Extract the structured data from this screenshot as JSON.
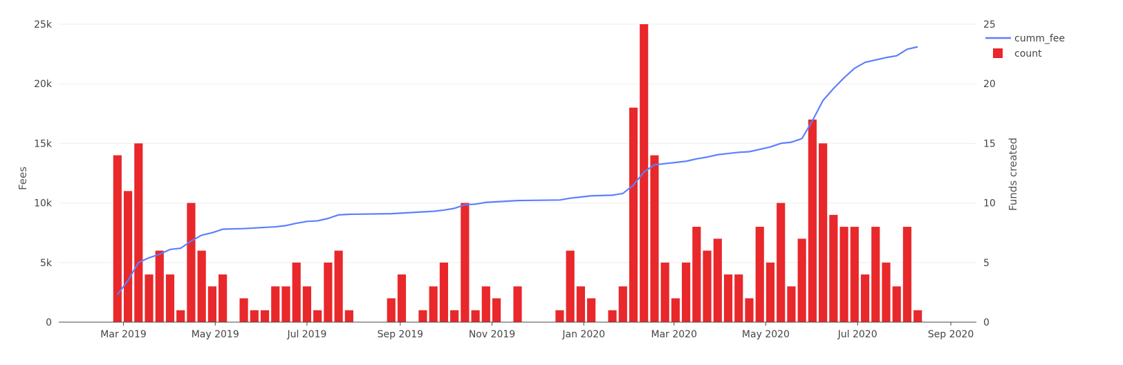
{
  "chart_data": {
    "type": "bar",
    "left_axis": {
      "label": "Fees",
      "ylim": [
        0,
        25000
      ],
      "ticks": [
        0,
        5000,
        10000,
        15000,
        20000,
        25000
      ],
      "tick_labels": [
        "0",
        "5k",
        "10k",
        "15k",
        "20k",
        "25k"
      ]
    },
    "right_axis": {
      "label": "Funds created",
      "ylim": [
        0,
        25
      ],
      "ticks": [
        0,
        5,
        10,
        15,
        20,
        25
      ],
      "tick_labels": [
        "0",
        "5",
        "10",
        "15",
        "20",
        "25"
      ]
    },
    "x_axis": {
      "ticks": [
        "2019-03-01",
        "2019-05-01",
        "2019-07-01",
        "2019-09-01",
        "2019-11-01",
        "2020-01-01",
        "2020-03-01",
        "2020-05-01",
        "2020-07-01",
        "2020-09-01"
      ],
      "tick_labels": [
        "Mar 2019",
        "May 2019",
        "Jul 2019",
        "Sep 2019",
        "Nov 2019",
        "Jan 2020",
        "Mar 2020",
        "May 2020",
        "Jul 2020",
        "Sep 2020"
      ],
      "range": [
        "2019-01-17",
        "2020-09-18"
      ]
    },
    "grid": true,
    "legend_position": "top-right",
    "legend": [
      {
        "name": "cumm_fee",
        "type": "line",
        "color": "#5B7FFF"
      },
      {
        "name": "count",
        "type": "bar",
        "color": "#E8282B"
      }
    ],
    "series": [
      {
        "name": "count",
        "type": "bar",
        "axis": "right",
        "color": "#E8282B",
        "points": [
          [
            "2019-02-25",
            14
          ],
          [
            "2019-03-04",
            11
          ],
          [
            "2019-03-11",
            15
          ],
          [
            "2019-03-18",
            4
          ],
          [
            "2019-03-25",
            6
          ],
          [
            "2019-04-01",
            4
          ],
          [
            "2019-04-08",
            1
          ],
          [
            "2019-04-15",
            10
          ],
          [
            "2019-04-22",
            6
          ],
          [
            "2019-04-29",
            3
          ],
          [
            "2019-05-06",
            4
          ],
          [
            "2019-05-20",
            2
          ],
          [
            "2019-05-27",
            1
          ],
          [
            "2019-06-03",
            1
          ],
          [
            "2019-06-10",
            3
          ],
          [
            "2019-06-17",
            3
          ],
          [
            "2019-06-24",
            5
          ],
          [
            "2019-07-01",
            3
          ],
          [
            "2019-07-08",
            1
          ],
          [
            "2019-07-15",
            5
          ],
          [
            "2019-07-22",
            6
          ],
          [
            "2019-07-29",
            1
          ],
          [
            "2019-08-26",
            2
          ],
          [
            "2019-09-02",
            4
          ],
          [
            "2019-09-16",
            1
          ],
          [
            "2019-09-23",
            3
          ],
          [
            "2019-09-30",
            5
          ],
          [
            "2019-10-07",
            1
          ],
          [
            "2019-10-14",
            10
          ],
          [
            "2019-10-21",
            1
          ],
          [
            "2019-10-28",
            3
          ],
          [
            "2019-11-04",
            2
          ],
          [
            "2019-11-18",
            3
          ],
          [
            "2019-12-16",
            1
          ],
          [
            "2019-12-23",
            6
          ],
          [
            "2019-12-30",
            3
          ],
          [
            "2020-01-06",
            2
          ],
          [
            "2020-01-20",
            1
          ],
          [
            "2020-01-27",
            3
          ],
          [
            "2020-02-03",
            18
          ],
          [
            "2020-02-10",
            25
          ],
          [
            "2020-02-17",
            14
          ],
          [
            "2020-02-24",
            5
          ],
          [
            "2020-03-02",
            2
          ],
          [
            "2020-03-09",
            5
          ],
          [
            "2020-03-16",
            8
          ],
          [
            "2020-03-23",
            6
          ],
          [
            "2020-03-30",
            7
          ],
          [
            "2020-04-06",
            4
          ],
          [
            "2020-04-13",
            4
          ],
          [
            "2020-04-20",
            2
          ],
          [
            "2020-04-27",
            8
          ],
          [
            "2020-05-04",
            5
          ],
          [
            "2020-05-11",
            10
          ],
          [
            "2020-05-18",
            3
          ],
          [
            "2020-05-25",
            7
          ],
          [
            "2020-06-01",
            17
          ],
          [
            "2020-06-08",
            15
          ],
          [
            "2020-06-15",
            9
          ],
          [
            "2020-06-22",
            8
          ],
          [
            "2020-06-29",
            8
          ],
          [
            "2020-07-06",
            4
          ],
          [
            "2020-07-13",
            8
          ],
          [
            "2020-07-20",
            5
          ],
          [
            "2020-07-27",
            3
          ],
          [
            "2020-08-03",
            8
          ],
          [
            "2020-08-10",
            1
          ]
        ]
      },
      {
        "name": "cumm_fee",
        "type": "line",
        "axis": "left",
        "color": "#5B7FFF",
        "points": [
          [
            "2019-02-25",
            2300
          ],
          [
            "2019-03-04",
            3500
          ],
          [
            "2019-03-11",
            5000
          ],
          [
            "2019-03-18",
            5400
          ],
          [
            "2019-03-25",
            5700
          ],
          [
            "2019-04-01",
            6100
          ],
          [
            "2019-04-08",
            6200
          ],
          [
            "2019-04-15",
            6800
          ],
          [
            "2019-04-22",
            7300
          ],
          [
            "2019-04-29",
            7500
          ],
          [
            "2019-05-06",
            7800
          ],
          [
            "2019-05-20",
            7850
          ],
          [
            "2019-05-27",
            7900
          ],
          [
            "2019-06-03",
            7950
          ],
          [
            "2019-06-10",
            8000
          ],
          [
            "2019-06-17",
            8100
          ],
          [
            "2019-06-24",
            8300
          ],
          [
            "2019-07-01",
            8450
          ],
          [
            "2019-07-08",
            8500
          ],
          [
            "2019-07-15",
            8700
          ],
          [
            "2019-07-22",
            9000
          ],
          [
            "2019-07-29",
            9050
          ],
          [
            "2019-08-26",
            9100
          ],
          [
            "2019-09-02",
            9150
          ],
          [
            "2019-09-16",
            9250
          ],
          [
            "2019-09-23",
            9300
          ],
          [
            "2019-09-30",
            9400
          ],
          [
            "2019-10-07",
            9550
          ],
          [
            "2019-10-14",
            9850
          ],
          [
            "2019-10-21",
            9900
          ],
          [
            "2019-10-28",
            10050
          ],
          [
            "2019-11-04",
            10100
          ],
          [
            "2019-11-18",
            10200
          ],
          [
            "2019-12-16",
            10250
          ],
          [
            "2019-12-23",
            10400
          ],
          [
            "2019-12-30",
            10500
          ],
          [
            "2020-01-06",
            10600
          ],
          [
            "2020-01-20",
            10650
          ],
          [
            "2020-01-27",
            10800
          ],
          [
            "2020-02-03",
            11500
          ],
          [
            "2020-02-10",
            12600
          ],
          [
            "2020-02-17",
            13200
          ],
          [
            "2020-02-24",
            13300
          ],
          [
            "2020-03-02",
            13400
          ],
          [
            "2020-03-09",
            13500
          ],
          [
            "2020-03-16",
            13700
          ],
          [
            "2020-03-23",
            13850
          ],
          [
            "2020-03-30",
            14050
          ],
          [
            "2020-04-06",
            14150
          ],
          [
            "2020-04-13",
            14250
          ],
          [
            "2020-04-20",
            14300
          ],
          [
            "2020-04-27",
            14500
          ],
          [
            "2020-05-04",
            14700
          ],
          [
            "2020-05-11",
            15000
          ],
          [
            "2020-05-18",
            15100
          ],
          [
            "2020-05-25",
            15400
          ],
          [
            "2020-06-01",
            16900
          ],
          [
            "2020-06-08",
            18600
          ],
          [
            "2020-06-15",
            19600
          ],
          [
            "2020-06-22",
            20500
          ],
          [
            "2020-06-29",
            21300
          ],
          [
            "2020-07-06",
            21800
          ],
          [
            "2020-07-13",
            22000
          ],
          [
            "2020-07-20",
            22200
          ],
          [
            "2020-07-27",
            22350
          ],
          [
            "2020-08-03",
            22900
          ],
          [
            "2020-08-10",
            23100
          ]
        ]
      }
    ]
  }
}
